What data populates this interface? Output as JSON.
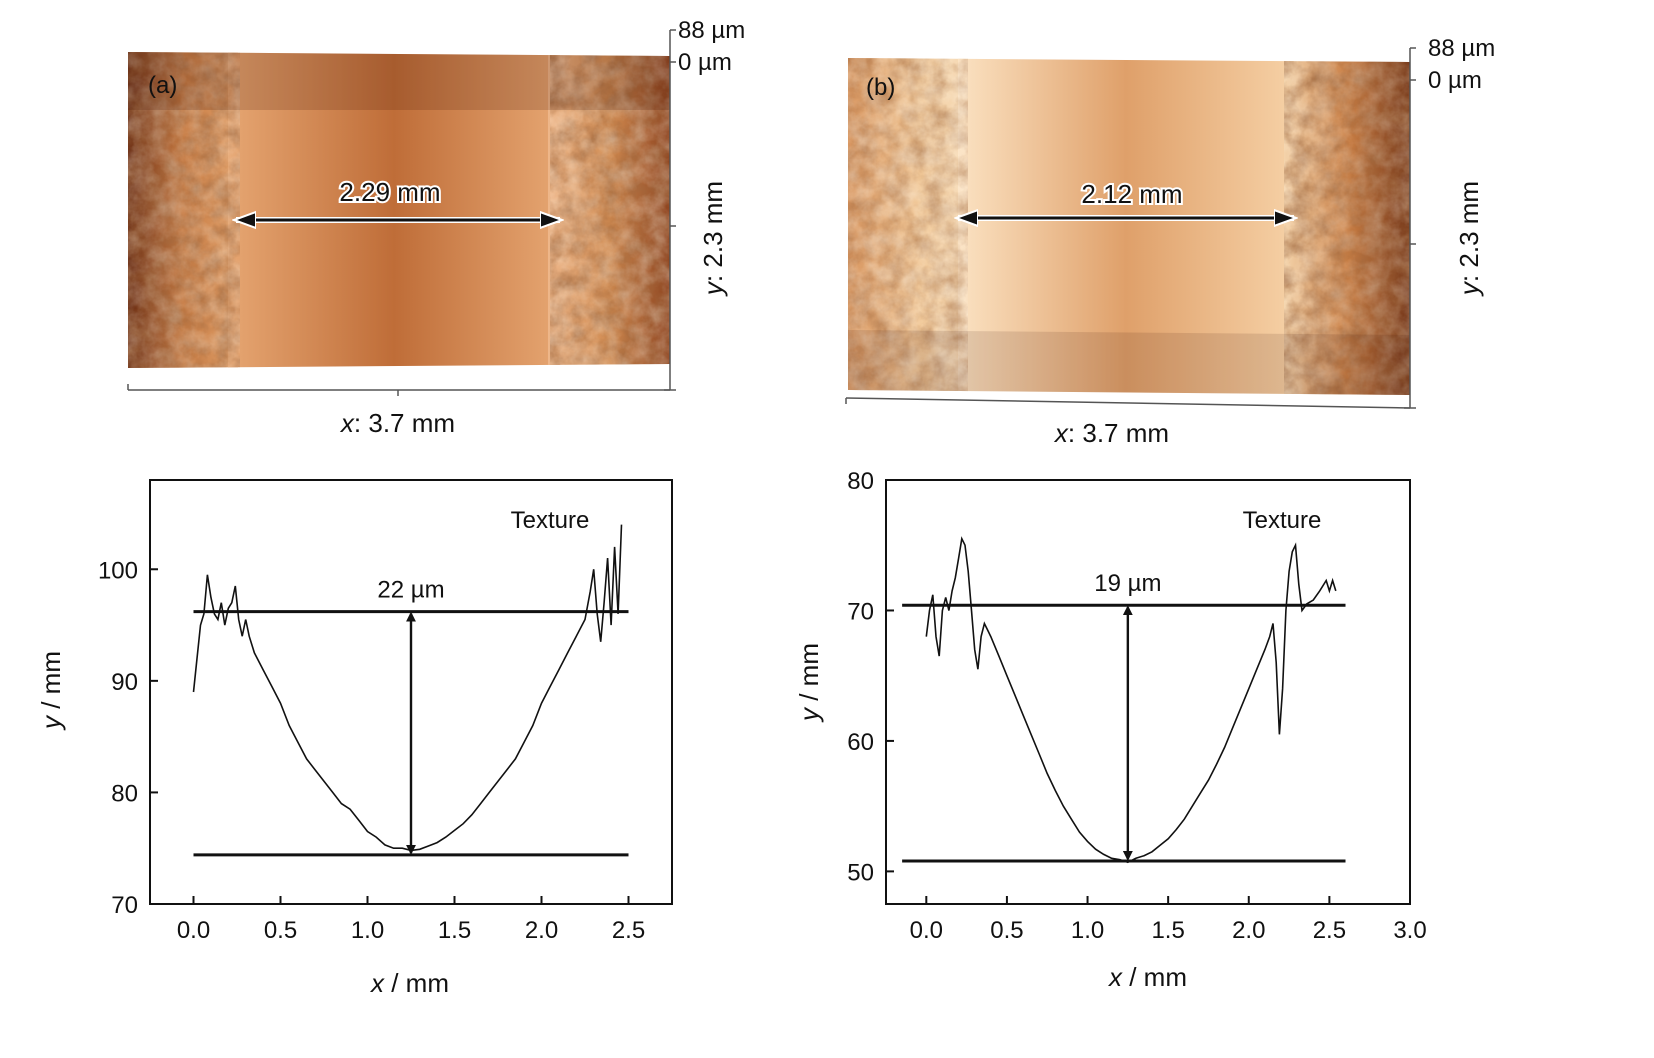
{
  "panels": [
    {
      "label": "(a)",
      "width_label": "2.29 mm",
      "z_top": "88 µm",
      "z_zero": "0 µm",
      "x_axis_label_var": "x",
      "x_axis_label_rest": ": 3.7 mm",
      "y_axis_label_var": "y",
      "y_axis_label_rest": ": 2.3 mm"
    },
    {
      "label": "(b)",
      "width_label": "2.12 mm",
      "z_top": "88 µm",
      "z_zero": "0 µm",
      "x_axis_label_var": "x",
      "x_axis_label_rest": ": 3.7 mm",
      "y_axis_label_var": "y",
      "y_axis_label_rest": ": 2.3 mm"
    }
  ],
  "colors": {
    "surface_dark": "#5a2410",
    "surface_mid": "#c0703a",
    "surface_light": "#f5d3a8",
    "line": "#111111"
  },
  "chart_data": [
    {
      "type": "line",
      "xlabel_var": "x",
      "xlabel_rest": " / mm",
      "ylabel_var": "y",
      "ylabel_rest": " / mm",
      "xlim": [
        -0.25,
        2.75
      ],
      "ylim": [
        70,
        108
      ],
      "xticks": [
        0.0,
        0.5,
        1.0,
        1.5,
        2.0,
        2.5
      ],
      "xtick_labels": [
        "0.0",
        "0.5",
        "1.0",
        "1.5",
        "2.0",
        "2.5"
      ],
      "yticks": [
        70,
        80,
        90,
        100
      ],
      "ytick_labels": [
        "70",
        "80",
        "90",
        "100"
      ],
      "annotation": "Texture",
      "depth_label": "22 µm",
      "top_line_y": 96.2,
      "bottom_line_y": 74.4,
      "ref_line_x": [
        0.0,
        2.5
      ],
      "arrow_x": 1.25,
      "series": [
        {
          "points": [
            [
              0.0,
              89
            ],
            [
              0.02,
              92
            ],
            [
              0.04,
              95
            ],
            [
              0.06,
              96
            ],
            [
              0.08,
              99.5
            ],
            [
              0.1,
              97.5
            ],
            [
              0.12,
              96
            ],
            [
              0.14,
              95.5
            ],
            [
              0.16,
              97
            ],
            [
              0.18,
              95
            ],
            [
              0.2,
              96.5
            ],
            [
              0.22,
              97
            ],
            [
              0.24,
              98.5
            ],
            [
              0.26,
              95.5
            ],
            [
              0.28,
              94
            ],
            [
              0.3,
              95.5
            ],
            [
              0.32,
              94
            ],
            [
              0.35,
              92.5
            ],
            [
              0.4,
              91
            ],
            [
              0.45,
              89.5
            ],
            [
              0.5,
              88
            ],
            [
              0.55,
              86
            ],
            [
              0.6,
              84.5
            ],
            [
              0.65,
              83
            ],
            [
              0.7,
              82
            ],
            [
              0.75,
              81
            ],
            [
              0.8,
              80
            ],
            [
              0.85,
              79
            ],
            [
              0.9,
              78.5
            ],
            [
              0.95,
              77.5
            ],
            [
              1.0,
              76.5
            ],
            [
              1.05,
              76
            ],
            [
              1.1,
              75.3
            ],
            [
              1.15,
              75
            ],
            [
              1.2,
              75
            ],
            [
              1.25,
              74.8
            ],
            [
              1.3,
              74.9
            ],
            [
              1.35,
              75.2
            ],
            [
              1.4,
              75.5
            ],
            [
              1.45,
              76
            ],
            [
              1.5,
              76.6
            ],
            [
              1.55,
              77.2
            ],
            [
              1.6,
              78
            ],
            [
              1.65,
              79
            ],
            [
              1.7,
              80
            ],
            [
              1.75,
              81
            ],
            [
              1.8,
              82
            ],
            [
              1.85,
              83
            ],
            [
              1.9,
              84.5
            ],
            [
              1.95,
              86
            ],
            [
              2.0,
              88
            ],
            [
              2.05,
              89.5
            ],
            [
              2.1,
              91
            ],
            [
              2.15,
              92.5
            ],
            [
              2.2,
              94
            ],
            [
              2.25,
              95.5
            ],
            [
              2.28,
              98
            ],
            [
              2.3,
              100
            ],
            [
              2.32,
              96
            ],
            [
              2.34,
              93.5
            ],
            [
              2.36,
              97
            ],
            [
              2.38,
              101
            ],
            [
              2.4,
              95
            ],
            [
              2.42,
              102
            ],
            [
              2.44,
              96
            ],
            [
              2.46,
              104
            ]
          ]
        }
      ]
    },
    {
      "type": "line",
      "xlabel_var": "x",
      "xlabel_rest": " / mm",
      "ylabel_var": "y",
      "ylabel_rest": " / mm",
      "xlim": [
        -0.25,
        3.0
      ],
      "ylim": [
        47.5,
        80
      ],
      "xticks": [
        0.0,
        0.5,
        1.0,
        1.5,
        2.0,
        2.5,
        3.0
      ],
      "xtick_labels": [
        "0.0",
        "0.5",
        "1.0",
        "1.5",
        "2.0",
        "2.5",
        "3.0"
      ],
      "yticks": [
        50,
        60,
        70,
        80
      ],
      "ytick_labels": [
        "50",
        "60",
        "70",
        "80"
      ],
      "annotation": "Texture",
      "depth_label": "19 µm",
      "top_line_y": 70.4,
      "bottom_line_y": 50.8,
      "ref_line_x": [
        -0.15,
        2.6
      ],
      "arrow_x": 1.25,
      "series": [
        {
          "points": [
            [
              0.0,
              68
            ],
            [
              0.02,
              70
            ],
            [
              0.04,
              71.2
            ],
            [
              0.06,
              68
            ],
            [
              0.08,
              66.5
            ],
            [
              0.1,
              70
            ],
            [
              0.12,
              71
            ],
            [
              0.14,
              70
            ],
            [
              0.16,
              71.5
            ],
            [
              0.18,
              72.5
            ],
            [
              0.2,
              74
            ],
            [
              0.22,
              75.5
            ],
            [
              0.24,
              75
            ],
            [
              0.26,
              73
            ],
            [
              0.28,
              70
            ],
            [
              0.3,
              67
            ],
            [
              0.32,
              65.5
            ],
            [
              0.34,
              68
            ],
            [
              0.36,
              69
            ],
            [
              0.38,
              68.5
            ],
            [
              0.4,
              68
            ],
            [
              0.45,
              66.5
            ],
            [
              0.5,
              65
            ],
            [
              0.55,
              63.5
            ],
            [
              0.6,
              62
            ],
            [
              0.65,
              60.5
            ],
            [
              0.7,
              59
            ],
            [
              0.75,
              57.5
            ],
            [
              0.8,
              56.2
            ],
            [
              0.85,
              55
            ],
            [
              0.9,
              54
            ],
            [
              0.95,
              53
            ],
            [
              1.0,
              52.3
            ],
            [
              1.05,
              51.7
            ],
            [
              1.1,
              51.3
            ],
            [
              1.15,
              51
            ],
            [
              1.2,
              50.9
            ],
            [
              1.25,
              50.7
            ],
            [
              1.3,
              51
            ],
            [
              1.35,
              51.2
            ],
            [
              1.4,
              51.5
            ],
            [
              1.45,
              52
            ],
            [
              1.5,
              52.5
            ],
            [
              1.55,
              53.2
            ],
            [
              1.6,
              54
            ],
            [
              1.65,
              55
            ],
            [
              1.7,
              56
            ],
            [
              1.75,
              57
            ],
            [
              1.8,
              58.2
            ],
            [
              1.85,
              59.5
            ],
            [
              1.9,
              61
            ],
            [
              1.95,
              62.5
            ],
            [
              2.0,
              64
            ],
            [
              2.05,
              65.5
            ],
            [
              2.1,
              67
            ],
            [
              2.13,
              68
            ],
            [
              2.15,
              69
            ],
            [
              2.17,
              66
            ],
            [
              2.19,
              60.5
            ],
            [
              2.21,
              64
            ],
            [
              2.23,
              70
            ],
            [
              2.25,
              73
            ],
            [
              2.27,
              74.5
            ],
            [
              2.29,
              75
            ],
            [
              2.31,
              72
            ],
            [
              2.33,
              70
            ],
            [
              2.36,
              70.5
            ],
            [
              2.4,
              70.8
            ],
            [
              2.44,
              71.5
            ],
            [
              2.48,
              72.3
            ],
            [
              2.5,
              71.5
            ],
            [
              2.52,
              72.3
            ],
            [
              2.54,
              71.5
            ]
          ]
        }
      ]
    }
  ]
}
